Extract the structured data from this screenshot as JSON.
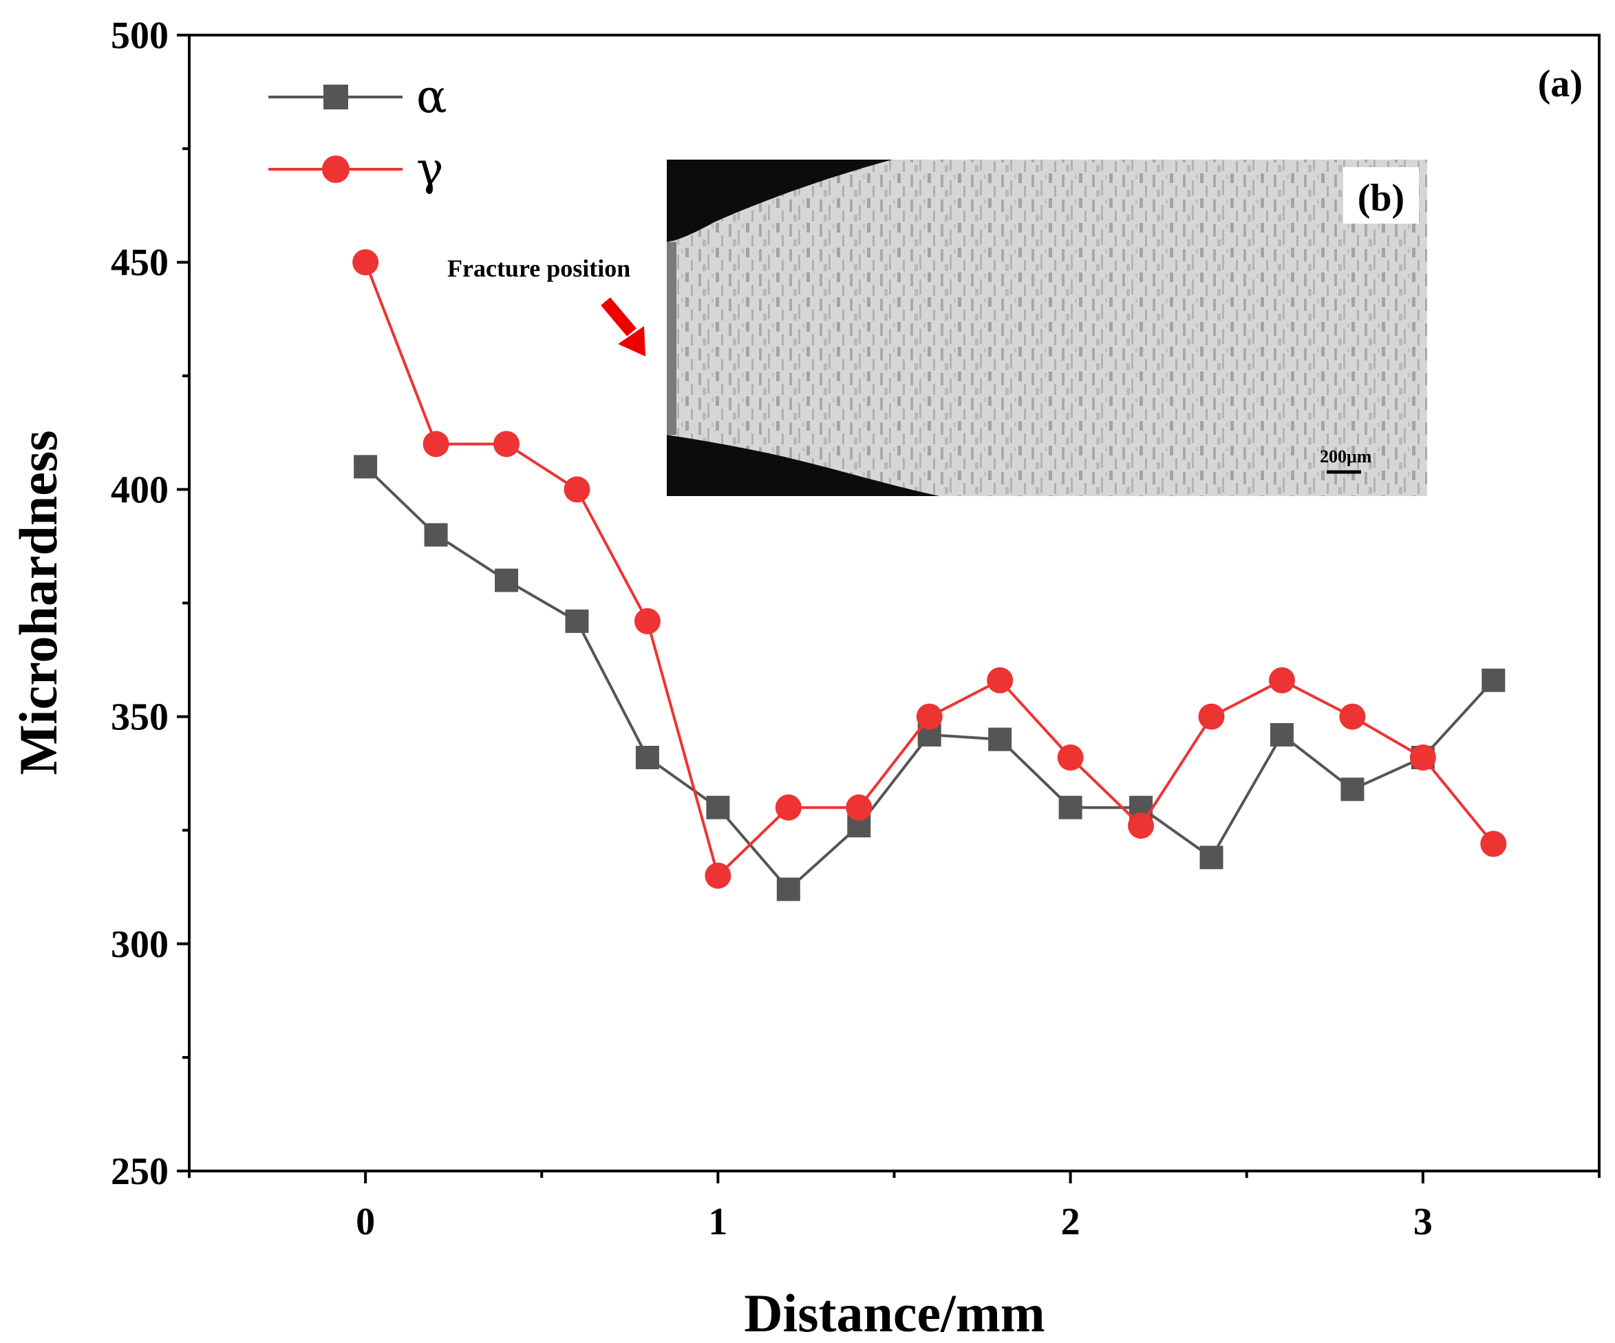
{
  "chart_data": {
    "type": "line",
    "title": "",
    "xlabel": "Distance/mm",
    "ylabel": "Microhardness",
    "xlim": [
      -0.5,
      3.5
    ],
    "ylim": [
      250,
      500
    ],
    "xticks": [
      0,
      1,
      2,
      3
    ],
    "yticks": [
      250,
      300,
      350,
      400,
      450,
      500
    ],
    "x": [
      0,
      0.2,
      0.4,
      0.6,
      0.8,
      1.0,
      1.2,
      1.4,
      1.6,
      1.8,
      2.0,
      2.2,
      2.4,
      2.6,
      2.8,
      3.0,
      3.2
    ],
    "series": [
      {
        "name": "α",
        "color": "#555555",
        "marker": "square",
        "values": [
          405,
          390,
          380,
          371,
          341,
          330,
          312,
          326,
          346,
          345,
          330,
          330,
          319,
          346,
          334,
          341,
          358
        ]
      },
      {
        "name": "γ",
        "color": "#ee3333",
        "marker": "circle",
        "values": [
          450,
          410,
          410,
          400,
          371,
          315,
          330,
          330,
          350,
          358,
          341,
          326,
          350,
          358,
          350,
          341,
          322
        ]
      }
    ],
    "grid": false,
    "legend_position": "top-left",
    "panel_label": "(a)",
    "inset": {
      "panel_label": "(b)",
      "annotation": "Fracture position",
      "scale_bar": "200μm",
      "annotation_color": "#ee0000"
    }
  }
}
